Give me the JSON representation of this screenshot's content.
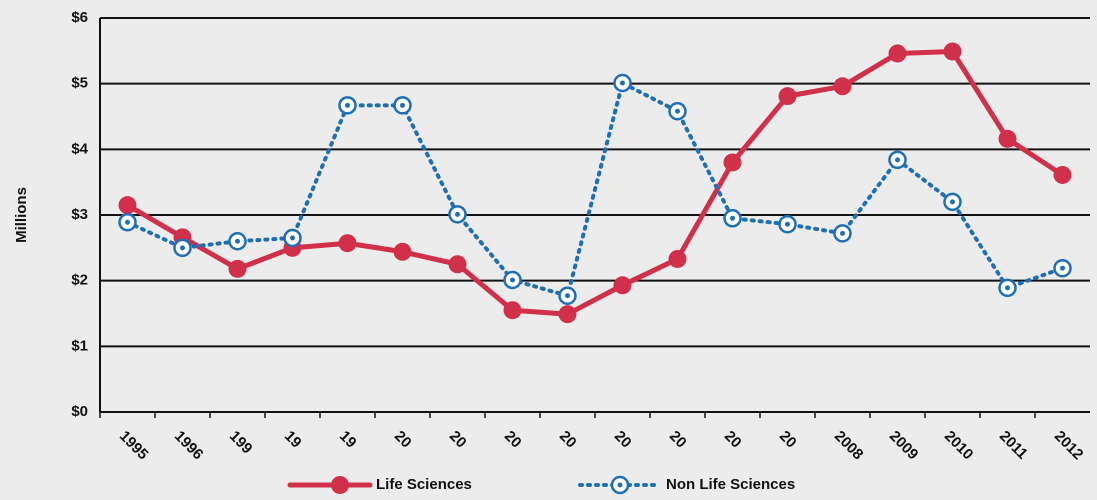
{
  "chart_data": {
    "type": "line",
    "y_label": "Millions",
    "categories": [
      "1995",
      "1996",
      "199",
      "19",
      "19",
      "20",
      "20",
      "20",
      "20",
      "20",
      "20",
      "20",
      "20",
      "2008",
      "2009",
      "2010",
      "2011",
      "2012"
    ],
    "series": [
      {
        "name": "Life Sciences",
        "color": "#d0304a",
        "style": "solid",
        "values": [
          3.15,
          2.66,
          2.18,
          2.5,
          2.57,
          2.44,
          2.25,
          1.55,
          1.49,
          1.93,
          2.33,
          3.8,
          4.81,
          4.96,
          5.46,
          5.49,
          4.16,
          3.61
        ]
      },
      {
        "name": "Non Life Sciences",
        "color": "#1f6fb5",
        "style": "dotted",
        "values": [
          2.89,
          2.5,
          2.6,
          2.65,
          4.67,
          4.67,
          3.01,
          2.01,
          1.77,
          5.01,
          4.58,
          2.95,
          2.86,
          2.72,
          3.84,
          3.2,
          1.89,
          2.19
        ]
      }
    ],
    "ylim": [
      0,
      6
    ],
    "yticks": [
      {
        "value": 0,
        "label": "$0"
      },
      {
        "value": 1,
        "label": "$1"
      },
      {
        "value": 2,
        "label": "$2"
      },
      {
        "value": 3,
        "label": "$3"
      },
      {
        "value": 4,
        "label": "$4"
      },
      {
        "value": 5,
        "label": "$5"
      },
      {
        "value": 6,
        "label": "$6"
      }
    ],
    "grid": true,
    "legend": "bottom"
  }
}
